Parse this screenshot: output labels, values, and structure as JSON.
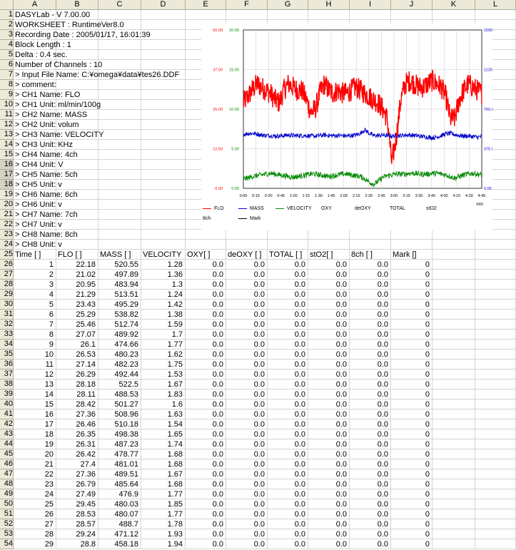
{
  "columns": [
    "A",
    "B",
    "C",
    "D",
    "E",
    "F",
    "G",
    "H",
    "I",
    "J",
    "K",
    "L"
  ],
  "info_rows": [
    "DASYLab - V 7.00.00",
    "WORKSHEET                : RuntimeVer8.0",
    "Recording Date      : 2005/01/17, 16:01:39",
    "Block Length          : 1",
    "Delta                     : 0.4 sec.",
    "Number of Channels : 10",
    "> Input File Name: C:¥omega¥data¥tes26.DDF",
    "> comment:",
    "> CH1 Name: FLO",
    "> CH1 Unit: ml/min/100g",
    "> CH2 Name: MASS",
    "> CH2 Unit: volum",
    "> CH3 Name: VELOCITY",
    "> CH3 Unit: KHz",
    "> CH4 Name: 4ch",
    "> CH4 Unit: V",
    "> CH5 Name: 5ch",
    "> CH5 Unit: v",
    "> CH6 Name: 6ch",
    "> CH6 Unit: v",
    "> CH7 Name: 7ch",
    "> CH7 Unit: v",
    "> CH8 Name: 8ch",
    "> CH8 Unit: v"
  ],
  "table_headers": [
    "Time [ ]",
    "FLO [ ]",
    "MASS [ ]",
    "VELOCITY",
    "OXY[ ]",
    "deOXY [ ]",
    "TOTAL [ ]",
    "stO2[ ]",
    "8ch [ ]",
    "Mark []"
  ],
  "table_rows": [
    [
      "1",
      "22.18",
      "520.55",
      "1.28",
      "0.0",
      "0.0",
      "0.0",
      "0.0",
      "0.0",
      "0"
    ],
    [
      "2",
      "21.02",
      "497.89",
      "1.36",
      "0.0",
      "0.0",
      "0.0",
      "0.0",
      "0.0",
      "0"
    ],
    [
      "3",
      "20.95",
      "483.94",
      "1.3",
      "0.0",
      "0.0",
      "0.0",
      "0.0",
      "0.0",
      "0"
    ],
    [
      "4",
      "21.29",
      "513.51",
      "1.24",
      "0.0",
      "0.0",
      "0.0",
      "0.0",
      "0.0",
      "0"
    ],
    [
      "5",
      "23.43",
      "495.29",
      "1.42",
      "0.0",
      "0.0",
      "0.0",
      "0.0",
      "0.0",
      "0"
    ],
    [
      "6",
      "25.29",
      "538.82",
      "1.38",
      "0.0",
      "0.0",
      "0.0",
      "0.0",
      "0.0",
      "0"
    ],
    [
      "7",
      "25.46",
      "512.74",
      "1.59",
      "0.0",
      "0.0",
      "0.0",
      "0.0",
      "0.0",
      "0"
    ],
    [
      "8",
      "27.07",
      "489.92",
      "1.7",
      "0.0",
      "0.0",
      "0.0",
      "0.0",
      "0.0",
      "0"
    ],
    [
      "9",
      "26.1",
      "474.66",
      "1.77",
      "0.0",
      "0.0",
      "0.0",
      "0.0",
      "0.0",
      "0"
    ],
    [
      "10",
      "26.53",
      "480.23",
      "1.62",
      "0.0",
      "0.0",
      "0.0",
      "0.0",
      "0.0",
      "0"
    ],
    [
      "11",
      "27.14",
      "482.23",
      "1.75",
      "0.0",
      "0.0",
      "0.0",
      "0.0",
      "0.0",
      "0"
    ],
    [
      "12",
      "26.29",
      "492.44",
      "1.53",
      "0.0",
      "0.0",
      "0.0",
      "0.0",
      "0.0",
      "0"
    ],
    [
      "13",
      "28.18",
      "522.5",
      "1.67",
      "0.0",
      "0.0",
      "0.0",
      "0.0",
      "0.0",
      "0"
    ],
    [
      "14",
      "28.11",
      "488.53",
      "1.83",
      "0.0",
      "0.0",
      "0.0",
      "0.0",
      "0.0",
      "0"
    ],
    [
      "15",
      "28.42",
      "501.27",
      "1.6",
      "0.0",
      "0.0",
      "0.0",
      "0.0",
      "0.0",
      "0"
    ],
    [
      "16",
      "27.36",
      "508.96",
      "1.63",
      "0.0",
      "0.0",
      "0.0",
      "0.0",
      "0.0",
      "0"
    ],
    [
      "17",
      "26.46",
      "510.18",
      "1.54",
      "0.0",
      "0.0",
      "0.0",
      "0.0",
      "0.0",
      "0"
    ],
    [
      "18",
      "26.35",
      "498.38",
      "1.65",
      "0.0",
      "0.0",
      "0.0",
      "0.0",
      "0.0",
      "0"
    ],
    [
      "19",
      "26.31",
      "487.23",
      "1.74",
      "0.0",
      "0.0",
      "0.0",
      "0.0",
      "0.0",
      "0"
    ],
    [
      "20",
      "26.42",
      "478.77",
      "1.68",
      "0.0",
      "0.0",
      "0.0",
      "0.0",
      "0.0",
      "0"
    ],
    [
      "21",
      "27.4",
      "481.01",
      "1.68",
      "0.0",
      "0.0",
      "0.0",
      "0.0",
      "0.0",
      "0"
    ],
    [
      "22",
      "27.36",
      "489.51",
      "1.67",
      "0.0",
      "0.0",
      "0.0",
      "0.0",
      "0.0",
      "0"
    ],
    [
      "23",
      "26.79",
      "485.64",
      "1.68",
      "0.0",
      "0.0",
      "0.0",
      "0.0",
      "0.0",
      "0"
    ],
    [
      "24",
      "27.49",
      "476.9",
      "1.77",
      "0.0",
      "0.0",
      "0.0",
      "0.0",
      "0.0",
      "0"
    ],
    [
      "25",
      "29.45",
      "480.03",
      "1.85",
      "0.0",
      "0.0",
      "0.0",
      "0.0",
      "0.0",
      "0"
    ],
    [
      "26",
      "28.53",
      "480.07",
      "1.77",
      "0.0",
      "0.0",
      "0.0",
      "0.0",
      "0.0",
      "0"
    ],
    [
      "27",
      "28.57",
      "488.7",
      "1.78",
      "0.0",
      "0.0",
      "0.0",
      "0.0",
      "0.0",
      "0"
    ],
    [
      "28",
      "29.24",
      "471.12",
      "1.93",
      "0.0",
      "0.0",
      "0.0",
      "0.0",
      "0.0",
      "0"
    ],
    [
      "29",
      "28.8",
      "458.18",
      "1.94",
      "0.0",
      "0.0",
      "0.0",
      "0.0",
      "0.0",
      "0"
    ]
  ],
  "colors": {
    "flo": "#ff0000",
    "mass": "#0000cc",
    "velocity": "#008800",
    "header_bg": "#ece9d8",
    "grid": "#d4d4d4"
  },
  "chart_data": {
    "type": "line",
    "x_ticks": [
      "0:00",
      "0:15",
      "0:30",
      "0:45",
      "1:00",
      "1:15",
      "1:30",
      "1:45",
      "2:00",
      "2:15",
      "2:30",
      "2:45",
      "3:00",
      "3:15",
      "3:30",
      "3:45",
      "4:00",
      "4:15",
      "4:30",
      "4:45"
    ],
    "x_unit": "min",
    "xlim": [
      0,
      285
    ],
    "y_left_ticks": [
      "0.00",
      "12.50",
      "25.00",
      "37.50",
      "50.00"
    ],
    "y_inner_ticks": [
      "0.00",
      "5.00",
      "10.00",
      "15.00",
      "20.00"
    ],
    "y_right_ticks": [
      "0.00",
      "375.00",
      "750.00",
      "1125.00",
      "1500.00"
    ],
    "series": [
      {
        "name": "FLO",
        "color": "#ff0000",
        "axis_max": 50,
        "base": [
          27,
          29,
          31,
          33,
          32,
          31,
          30,
          28,
          27,
          31,
          33,
          32,
          31,
          31,
          28,
          24,
          25,
          30,
          33,
          31,
          30,
          31,
          30,
          30,
          31,
          32,
          31,
          30,
          29,
          28,
          27,
          25,
          22,
          8,
          16,
          28,
          33,
          34,
          33,
          32,
          32,
          33,
          34,
          33,
          32,
          29,
          22,
          22,
          28,
          31,
          33,
          32,
          31,
          30
        ],
        "noise": 3.5
      },
      {
        "name": "MASS",
        "color": "#0000cc",
        "axis_max": 1500,
        "base": [
          510,
          520,
          520,
          515,
          505,
          500,
          500,
          495,
          495,
          500,
          505,
          500,
          500,
          500,
          500,
          495,
          495,
          500,
          505,
          500,
          500,
          500,
          500,
          495,
          500,
          505,
          520,
          555,
          520,
          500,
          500,
          505,
          500,
          495,
          500,
          500,
          505,
          505,
          500,
          495,
          490,
          485,
          480,
          485,
          500,
          515,
          520,
          510,
          500,
          495,
          495,
          490,
          485,
          490
        ],
        "noise": 22
      },
      {
        "name": "VELOCITY",
        "color": "#008800",
        "axis_max": 20,
        "base": [
          1.2,
          1.3,
          1.5,
          1.6,
          1.7,
          1.8,
          1.9,
          1.8,
          1.7,
          1.6,
          1.5,
          1.4,
          1.5,
          1.6,
          1.7,
          1.8,
          1.8,
          1.7,
          1.6,
          1.5,
          1.6,
          1.7,
          1.8,
          1.8,
          1.7,
          1.6,
          1.5,
          1.2,
          0.8,
          0.5,
          0.9,
          1.4,
          1.6,
          1.7,
          1.8,
          1.8,
          1.8,
          1.9,
          1.9,
          1.8,
          1.8,
          1.8,
          1.9,
          1.9,
          1.8,
          1.7,
          1.5,
          1.3,
          1.5,
          1.7,
          1.8,
          1.9,
          1.8,
          1.7
        ],
        "noise": 0.35
      }
    ],
    "legend": [
      {
        "name": "FLO",
        "color": "#ff0000"
      },
      {
        "name": "MASS",
        "color": "#0000cc"
      },
      {
        "name": "VELOCITY",
        "color": "#008800"
      },
      {
        "name": "OXY",
        "color": ""
      },
      {
        "name": "deOXY",
        "color": ""
      },
      {
        "name": "TOTAL",
        "color": ""
      },
      {
        "name": "stO2",
        "color": ""
      },
      {
        "name": "8ch",
        "color": ""
      },
      {
        "name": "Mark",
        "color": "#000000"
      }
    ]
  }
}
